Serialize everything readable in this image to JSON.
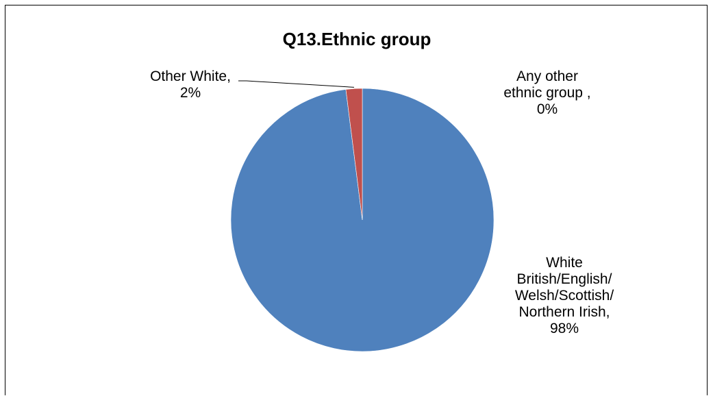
{
  "chart_data": {
    "type": "pie",
    "title": "Q13.Ethnic group",
    "legend": "none",
    "slices": [
      {
        "name": "White British/English/ Welsh/Scottish/ Northern Irish",
        "value": 98,
        "label_lines": [
          "White",
          "British/English/",
          "Welsh/Scottish/",
          "Northern Irish,",
          "98%"
        ],
        "color": "#4f81bd"
      },
      {
        "name": "Other White",
        "value": 2,
        "label_lines": [
          "Other White,",
          "2%"
        ],
        "color": "#c0504d"
      },
      {
        "name": "Any other ethnic group",
        "value": 0,
        "label_lines": [
          "Any other",
          "ethnic group  ,",
          "0%"
        ],
        "color": "#9bbb59"
      }
    ]
  }
}
